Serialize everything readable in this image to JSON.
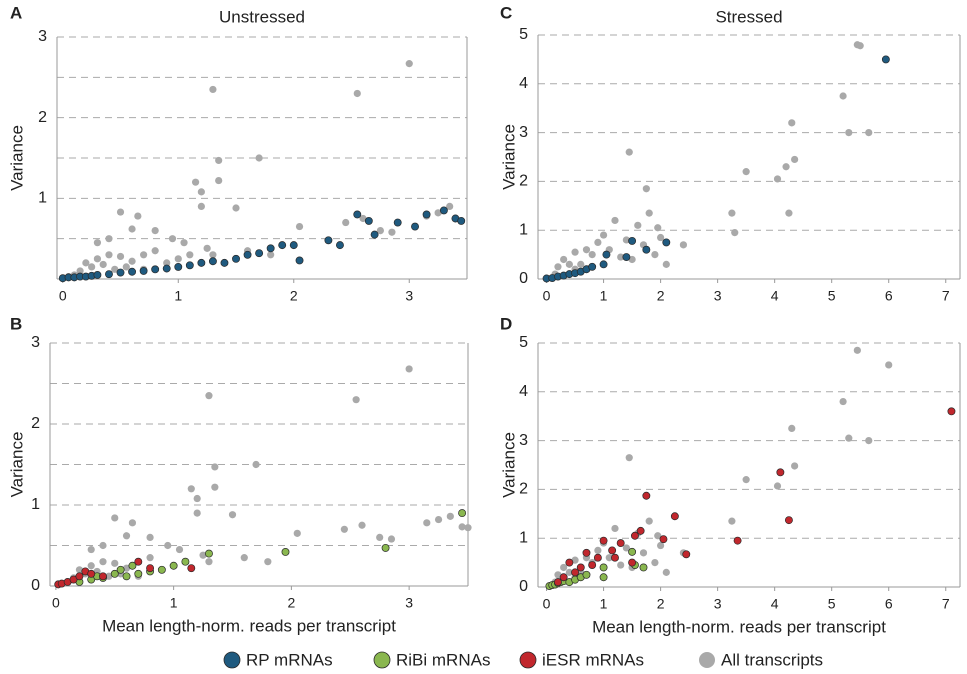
{
  "chart_data": [
    {
      "type": "scatter",
      "panel": "A",
      "title": "Unstressed",
      "ylabel": "Variance",
      "xlim": [
        -0.05,
        3.5
      ],
      "ylim": [
        0,
        3
      ],
      "xticks": [
        0,
        1,
        2,
        3
      ],
      "yticks": [
        1,
        2,
        3
      ],
      "minor_yticks": [
        0.5,
        1.5,
        2.5
      ],
      "series": [
        {
          "name": "All transcripts",
          "color": "#a9a9a9",
          "x": [
            3.0,
            2.55,
            1.3,
            1.35,
            1.7,
            1.35,
            1.15,
            1.2,
            1.2,
            1.5,
            0.5,
            0.65,
            0.6,
            0.8,
            0.4,
            0.3,
            0.95,
            1.05,
            1.25,
            2.05,
            2.45,
            2.6,
            2.75,
            2.85,
            3.15,
            3.35,
            3.25,
            0.2,
            0.3,
            0.4,
            0.5,
            0.6,
            0.7,
            0.8,
            0.9,
            1.0,
            1.1,
            0.15,
            0.25,
            0.35,
            0.45,
            0.55,
            0.7,
            1.3,
            1.6,
            1.8,
            0.1,
            0.05
          ],
          "y": [
            2.67,
            2.3,
            2.35,
            1.47,
            1.5,
            1.22,
            1.2,
            1.08,
            0.9,
            0.88,
            0.83,
            0.78,
            0.62,
            0.6,
            0.5,
            0.45,
            0.5,
            0.45,
            0.38,
            0.65,
            0.7,
            0.75,
            0.6,
            0.58,
            0.78,
            0.9,
            0.82,
            0.2,
            0.25,
            0.3,
            0.28,
            0.22,
            0.3,
            0.35,
            0.2,
            0.25,
            0.3,
            0.1,
            0.15,
            0.18,
            0.12,
            0.15,
            0.12,
            0.3,
            0.35,
            0.3,
            0.05,
            0.03
          ]
        },
        {
          "name": "RP mRNAs",
          "color": "#1f5a7f",
          "x": [
            0,
            0.05,
            0.1,
            0.15,
            0.2,
            0.25,
            0.3,
            0.4,
            0.5,
            0.6,
            0.7,
            0.8,
            0.9,
            1.0,
            1.1,
            1.2,
            1.3,
            1.4,
            1.5,
            1.6,
            1.7,
            1.8,
            1.9,
            2.0,
            2.05,
            2.3,
            2.4,
            2.55,
            2.65,
            2.7,
            2.9,
            3.05,
            3.15,
            3.3,
            3.4,
            3.45
          ],
          "y": [
            0.01,
            0.02,
            0.02,
            0.03,
            0.03,
            0.04,
            0.05,
            0.06,
            0.08,
            0.09,
            0.1,
            0.12,
            0.13,
            0.15,
            0.17,
            0.2,
            0.22,
            0.2,
            0.25,
            0.3,
            0.32,
            0.38,
            0.42,
            0.42,
            0.23,
            0.48,
            0.42,
            0.8,
            0.72,
            0.55,
            0.7,
            0.65,
            0.8,
            0.85,
            0.75,
            0.72
          ]
        }
      ]
    },
    {
      "type": "scatter",
      "panel": "B",
      "ylabel": "Variance",
      "xlabel": "Mean length-norm. reads per transcript",
      "xlim": [
        -0.05,
        3.5
      ],
      "ylim": [
        0,
        3
      ],
      "xticks": [
        0,
        1,
        2,
        3
      ],
      "yticks": [
        0,
        1,
        2,
        3
      ],
      "minor_yticks": [
        0.5,
        1.5,
        2.5
      ],
      "series": [
        {
          "name": "All transcripts",
          "color": "#a9a9a9",
          "x": [
            3.0,
            2.55,
            1.3,
            1.35,
            1.7,
            1.35,
            1.15,
            1.2,
            1.2,
            1.5,
            0.5,
            0.65,
            0.6,
            0.8,
            0.4,
            0.3,
            0.95,
            1.05,
            1.25,
            2.05,
            2.45,
            2.6,
            2.75,
            2.85,
            3.15,
            3.35,
            3.25,
            0.2,
            0.3,
            0.4,
            0.5,
            0.6,
            0.7,
            0.8,
            0.9,
            1.0,
            1.1,
            0.15,
            0.25,
            0.35,
            0.45,
            0.55,
            0.7,
            1.3,
            1.6,
            1.8,
            3.45,
            3.5
          ],
          "y": [
            2.68,
            2.3,
            2.35,
            1.47,
            1.5,
            1.22,
            1.2,
            1.08,
            0.9,
            0.88,
            0.84,
            0.78,
            0.62,
            0.6,
            0.5,
            0.45,
            0.5,
            0.45,
            0.38,
            0.65,
            0.7,
            0.75,
            0.6,
            0.58,
            0.78,
            0.86,
            0.82,
            0.2,
            0.25,
            0.3,
            0.28,
            0.22,
            0.3,
            0.35,
            0.2,
            0.25,
            0.3,
            0.1,
            0.15,
            0.18,
            0.12,
            0.15,
            0.12,
            0.3,
            0.35,
            0.3,
            0.73,
            0.72
          ]
        },
        {
          "name": "RiBi mRNAs",
          "color": "#8ab74f",
          "x": [
            0.2,
            0.3,
            0.4,
            0.5,
            0.55,
            0.6,
            0.7,
            0.8,
            0.9,
            1.0,
            1.1,
            1.3,
            1.95,
            2.8,
            3.45,
            0.35,
            0.65
          ],
          "y": [
            0.05,
            0.08,
            0.1,
            0.15,
            0.2,
            0.12,
            0.15,
            0.18,
            0.2,
            0.25,
            0.3,
            0.4,
            0.42,
            0.47,
            0.9,
            0.12,
            0.25
          ]
        },
        {
          "name": "iESR mRNAs",
          "color": "#c1272d",
          "x": [
            0.02,
            0.05,
            0.1,
            0.15,
            0.2,
            0.25,
            0.3,
            0.4,
            0.7,
            0.8,
            1.15
          ],
          "y": [
            0.02,
            0.03,
            0.05,
            0.08,
            0.12,
            0.18,
            0.15,
            0.12,
            0.3,
            0.22,
            0.22
          ]
        }
      ]
    },
    {
      "type": "scatter",
      "panel": "C",
      "title": "Stressed",
      "ylabel": "Variance",
      "xlim": [
        -0.15,
        7.25
      ],
      "ylim": [
        0,
        5
      ],
      "xticks": [
        0,
        1,
        2,
        3,
        4,
        5,
        6,
        7
      ],
      "yticks": [
        0,
        1,
        2,
        3,
        4,
        5
      ],
      "series": [
        {
          "name": "All transcripts",
          "color": "#a9a9a9",
          "x": [
            5.45,
            5.5,
            5.2,
            5.3,
            5.65,
            4.3,
            4.35,
            4.2,
            4.05,
            3.5,
            4.25,
            3.25,
            3.3,
            1.45,
            1.75,
            1.8,
            1.2,
            1.6,
            1.95,
            2.4,
            2.0,
            1.7,
            1.4,
            1.0,
            0.9,
            0.7,
            0.5,
            0.3,
            0.2,
            0.4,
            0.6,
            0.8,
            1.1,
            1.3,
            0.5,
            0.15,
            1.5,
            1.9,
            2.1
          ],
          "y": [
            4.8,
            4.78,
            3.75,
            3.0,
            3.0,
            3.2,
            2.45,
            2.3,
            2.05,
            2.2,
            1.35,
            1.35,
            0.95,
            2.6,
            1.85,
            1.35,
            1.2,
            1.1,
            1.05,
            0.7,
            0.85,
            0.7,
            0.8,
            0.9,
            0.75,
            0.6,
            0.55,
            0.4,
            0.25,
            0.3,
            0.3,
            0.5,
            0.6,
            0.45,
            0.2,
            0.1,
            0.4,
            0.5,
            0.3
          ]
        },
        {
          "name": "RP mRNAs",
          "color": "#1f5a7f",
          "x": [
            0,
            0.1,
            0.2,
            0.3,
            0.4,
            0.5,
            0.6,
            0.7,
            0.8,
            1.0,
            1.05,
            1.4,
            1.5,
            1.75,
            2.1,
            5.95
          ],
          "y": [
            0.01,
            0.02,
            0.05,
            0.07,
            0.1,
            0.12,
            0.15,
            0.2,
            0.25,
            0.3,
            0.5,
            0.45,
            0.78,
            0.6,
            0.75,
            4.5
          ]
        }
      ]
    },
    {
      "type": "scatter",
      "panel": "D",
      "ylabel": "Variance",
      "xlabel": "Mean length-norm. reads per transcript",
      "xlim": [
        -0.15,
        7.25
      ],
      "ylim": [
        0,
        5
      ],
      "xticks": [
        0,
        1,
        2,
        3,
        4,
        5,
        6,
        7
      ],
      "yticks": [
        0,
        1,
        2,
        3,
        4,
        5
      ],
      "series": [
        {
          "name": "All transcripts",
          "color": "#a9a9a9",
          "x": [
            5.45,
            6.0,
            5.2,
            5.3,
            5.65,
            4.3,
            4.35,
            4.05,
            3.5,
            3.25,
            1.45,
            1.8,
            1.2,
            1.6,
            1.95,
            2.4,
            2.0,
            1.7,
            1.4,
            1.0,
            0.9,
            0.7,
            0.5,
            0.3,
            0.2,
            0.4,
            0.6,
            0.8,
            1.1,
            1.3,
            0.5,
            0.15,
            1.5,
            1.9,
            2.1
          ],
          "y": [
            4.85,
            4.55,
            3.8,
            3.05,
            3.0,
            3.25,
            2.48,
            2.07,
            2.2,
            1.35,
            2.65,
            1.35,
            1.2,
            1.1,
            1.05,
            0.7,
            0.85,
            0.7,
            0.8,
            0.9,
            0.75,
            0.6,
            0.55,
            0.4,
            0.25,
            0.3,
            0.3,
            0.5,
            0.6,
            0.45,
            0.2,
            0.1,
            0.4,
            0.5,
            0.3
          ]
        },
        {
          "name": "RiBi mRNAs",
          "color": "#8ab74f",
          "x": [
            0.05,
            0.1,
            0.15,
            0.2,
            0.25,
            0.3,
            0.4,
            0.5,
            0.6,
            0.7,
            1.0,
            1.5,
            1.55,
            1.7,
            1.0
          ],
          "y": [
            0.02,
            0.04,
            0.05,
            0.08,
            0.1,
            0.12,
            0.1,
            0.15,
            0.2,
            0.25,
            0.4,
            0.72,
            0.45,
            0.4,
            0.2
          ]
        },
        {
          "name": "iESR mRNAs",
          "color": "#c1272d",
          "x": [
            7.1,
            4.1,
            4.25,
            3.35,
            2.25,
            2.05,
            2.45,
            1.75,
            1.55,
            1.65,
            1.3,
            1.15,
            1.0,
            0.9,
            0.8,
            0.7,
            0.6,
            0.5,
            0.4,
            1.2,
            1.5,
            0.3,
            0.2
          ],
          "y": [
            3.6,
            2.35,
            1.37,
            0.95,
            1.45,
            0.98,
            0.67,
            1.87,
            1.05,
            1.15,
            0.9,
            0.75,
            0.95,
            0.6,
            0.45,
            0.7,
            0.4,
            0.3,
            0.5,
            0.6,
            0.5,
            0.2,
            0.1
          ]
        }
      ]
    }
  ]
}
